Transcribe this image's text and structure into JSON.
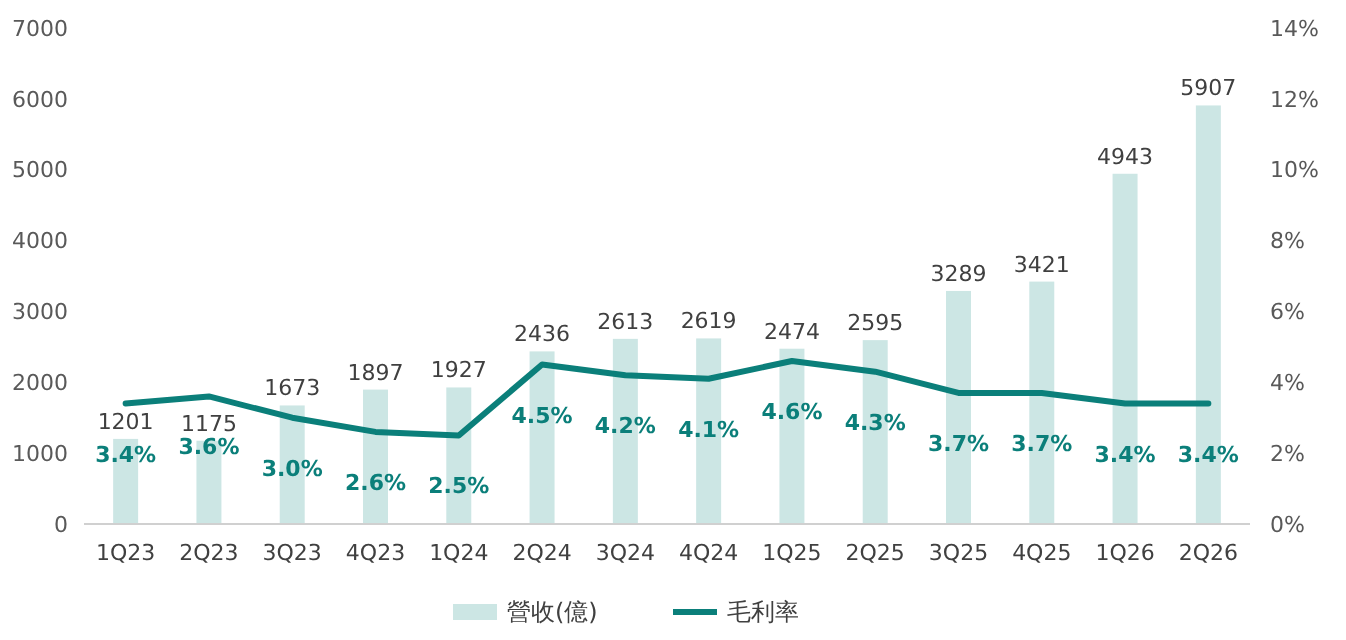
{
  "chart_data": {
    "type": "bar",
    "categories": [
      "1Q23",
      "2Q23",
      "3Q23",
      "4Q23",
      "1Q24",
      "2Q24",
      "3Q24",
      "4Q24",
      "1Q25",
      "2Q25",
      "3Q25",
      "4Q25",
      "1Q26",
      "2Q26"
    ],
    "series": [
      {
        "name": "營收(億)",
        "color": "#cce6e4",
        "values": [
          1201,
          1175,
          1673,
          1897,
          1927,
          2436,
          2613,
          2619,
          2474,
          2595,
          3289,
          3421,
          4943,
          5907
        ]
      },
      {
        "name": "毛利率",
        "type": "line",
        "axis": "y2",
        "color": "#0b7f7a",
        "values": [
          3.4,
          3.6,
          3.0,
          2.6,
          2.5,
          4.5,
          4.2,
          4.1,
          4.6,
          4.3,
          3.7,
          3.7,
          3.4,
          3.4
        ],
        "value_labels": [
          "3.4%",
          "3.6%",
          "3.0%",
          "2.6%",
          "2.5%",
          "4.5%",
          "4.2%",
          "4.1%",
          "4.6%",
          "4.3%",
          "3.7%",
          "3.7%",
          "3.4%",
          "3.4%"
        ]
      }
    ],
    "ylim": [
      0,
      7000
    ],
    "yticks": [
      0,
      1000,
      2000,
      3000,
      4000,
      5000,
      6000,
      7000
    ],
    "y2lim": [
      0,
      14
    ],
    "y2ticks": [
      {
        "value": 0,
        "label": "0%"
      },
      {
        "value": 2,
        "label": "2%"
      },
      {
        "value": 4,
        "label": "4%"
      },
      {
        "value": 6,
        "label": "6%"
      },
      {
        "value": 8,
        "label": "8%"
      },
      {
        "value": 10,
        "label": "10%"
      },
      {
        "value": 12,
        "label": "12%"
      },
      {
        "value": 14,
        "label": "14%"
      }
    ],
    "data_labels": true,
    "grid": false,
    "legend": "bottom",
    "marker": "none",
    "line_style": "solid"
  }
}
